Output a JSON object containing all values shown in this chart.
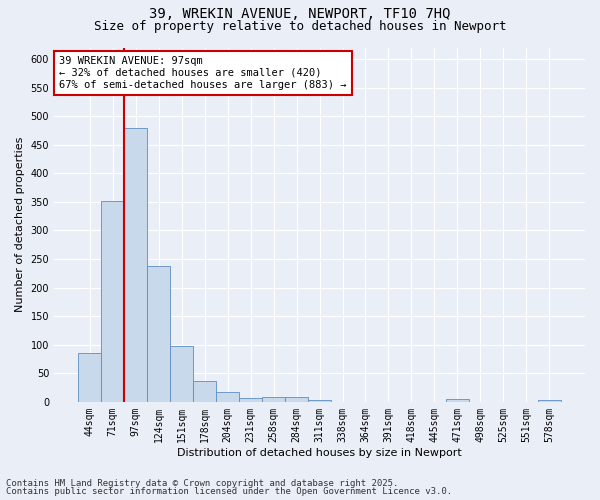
{
  "title_line1": "39, WREKIN AVENUE, NEWPORT, TF10 7HQ",
  "title_line2": "Size of property relative to detached houses in Newport",
  "xlabel": "Distribution of detached houses by size in Newport",
  "ylabel": "Number of detached properties",
  "categories": [
    "44sqm",
    "71sqm",
    "97sqm",
    "124sqm",
    "151sqm",
    "178sqm",
    "204sqm",
    "231sqm",
    "258sqm",
    "284sqm",
    "311sqm",
    "338sqm",
    "364sqm",
    "391sqm",
    "418sqm",
    "445sqm",
    "471sqm",
    "498sqm",
    "525sqm",
    "551sqm",
    "578sqm"
  ],
  "values": [
    85,
    352,
    480,
    237,
    97,
    37,
    17,
    7,
    8,
    8,
    4,
    0,
    0,
    0,
    0,
    0,
    5,
    0,
    0,
    0,
    4
  ],
  "bar_color": "#c9d9ec",
  "bar_edge_color": "#5b8ec4",
  "highlight_index": 2,
  "highlight_line_color": "#cc0000",
  "ylim": [
    0,
    620
  ],
  "yticks": [
    0,
    50,
    100,
    150,
    200,
    250,
    300,
    350,
    400,
    450,
    500,
    550,
    600
  ],
  "annotation_text": "39 WREKIN AVENUE: 97sqm\n← 32% of detached houses are smaller (420)\n67% of semi-detached houses are larger (883) →",
  "annotation_box_color": "#cc0000",
  "footer_line1": "Contains HM Land Registry data © Crown copyright and database right 2025.",
  "footer_line2": "Contains public sector information licensed under the Open Government Licence v3.0.",
  "bg_color": "#eaeff7",
  "plot_bg_color": "#eaeff7",
  "grid_color": "#ffffff",
  "title_fontsize": 10,
  "subtitle_fontsize": 9,
  "axis_label_fontsize": 8,
  "tick_fontsize": 7,
  "annotation_fontsize": 7.5,
  "footer_fontsize": 6.5
}
